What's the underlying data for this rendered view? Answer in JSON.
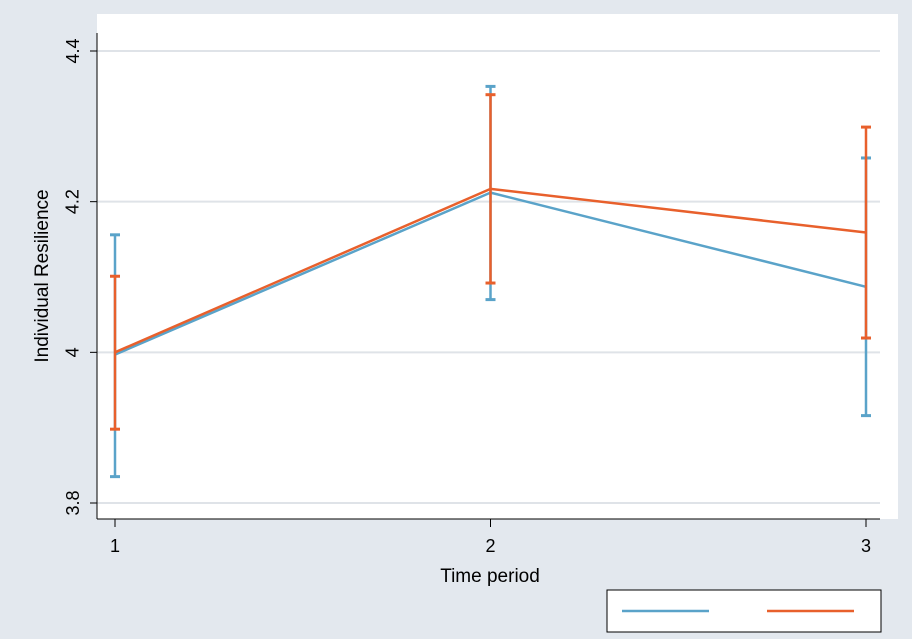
{
  "chart_data": {
    "type": "line",
    "xlabel": "Time period",
    "ylabel": "Individual Resilience",
    "categories": [
      "1",
      "2",
      "3"
    ],
    "x": [
      1,
      2,
      3
    ],
    "xticks": [
      "1",
      "2",
      "3"
    ],
    "yticks": [
      "3.8",
      "4",
      "4.2",
      "4.4"
    ],
    "ylim": [
      3.8,
      4.4
    ],
    "grid": true,
    "legend": "bottom-right",
    "series": [
      {
        "color": "#5aa3c9",
        "values": [
          3.997,
          4.212,
          4.087
        ],
        "ci_low": [
          3.835,
          4.07,
          3.916
        ],
        "ci_high": [
          4.156,
          4.353,
          4.258
        ]
      },
      {
        "color": "#e8602c",
        "values": [
          4.0,
          4.217,
          4.159
        ],
        "ci_low": [
          3.898,
          4.092,
          4.019
        ],
        "ci_high": [
          4.101,
          4.342,
          4.299
        ]
      }
    ]
  },
  "colors": {
    "outer_background": "#e3e8ee",
    "plot_background": "#ffffff",
    "grid": "#dfe3e8"
  }
}
